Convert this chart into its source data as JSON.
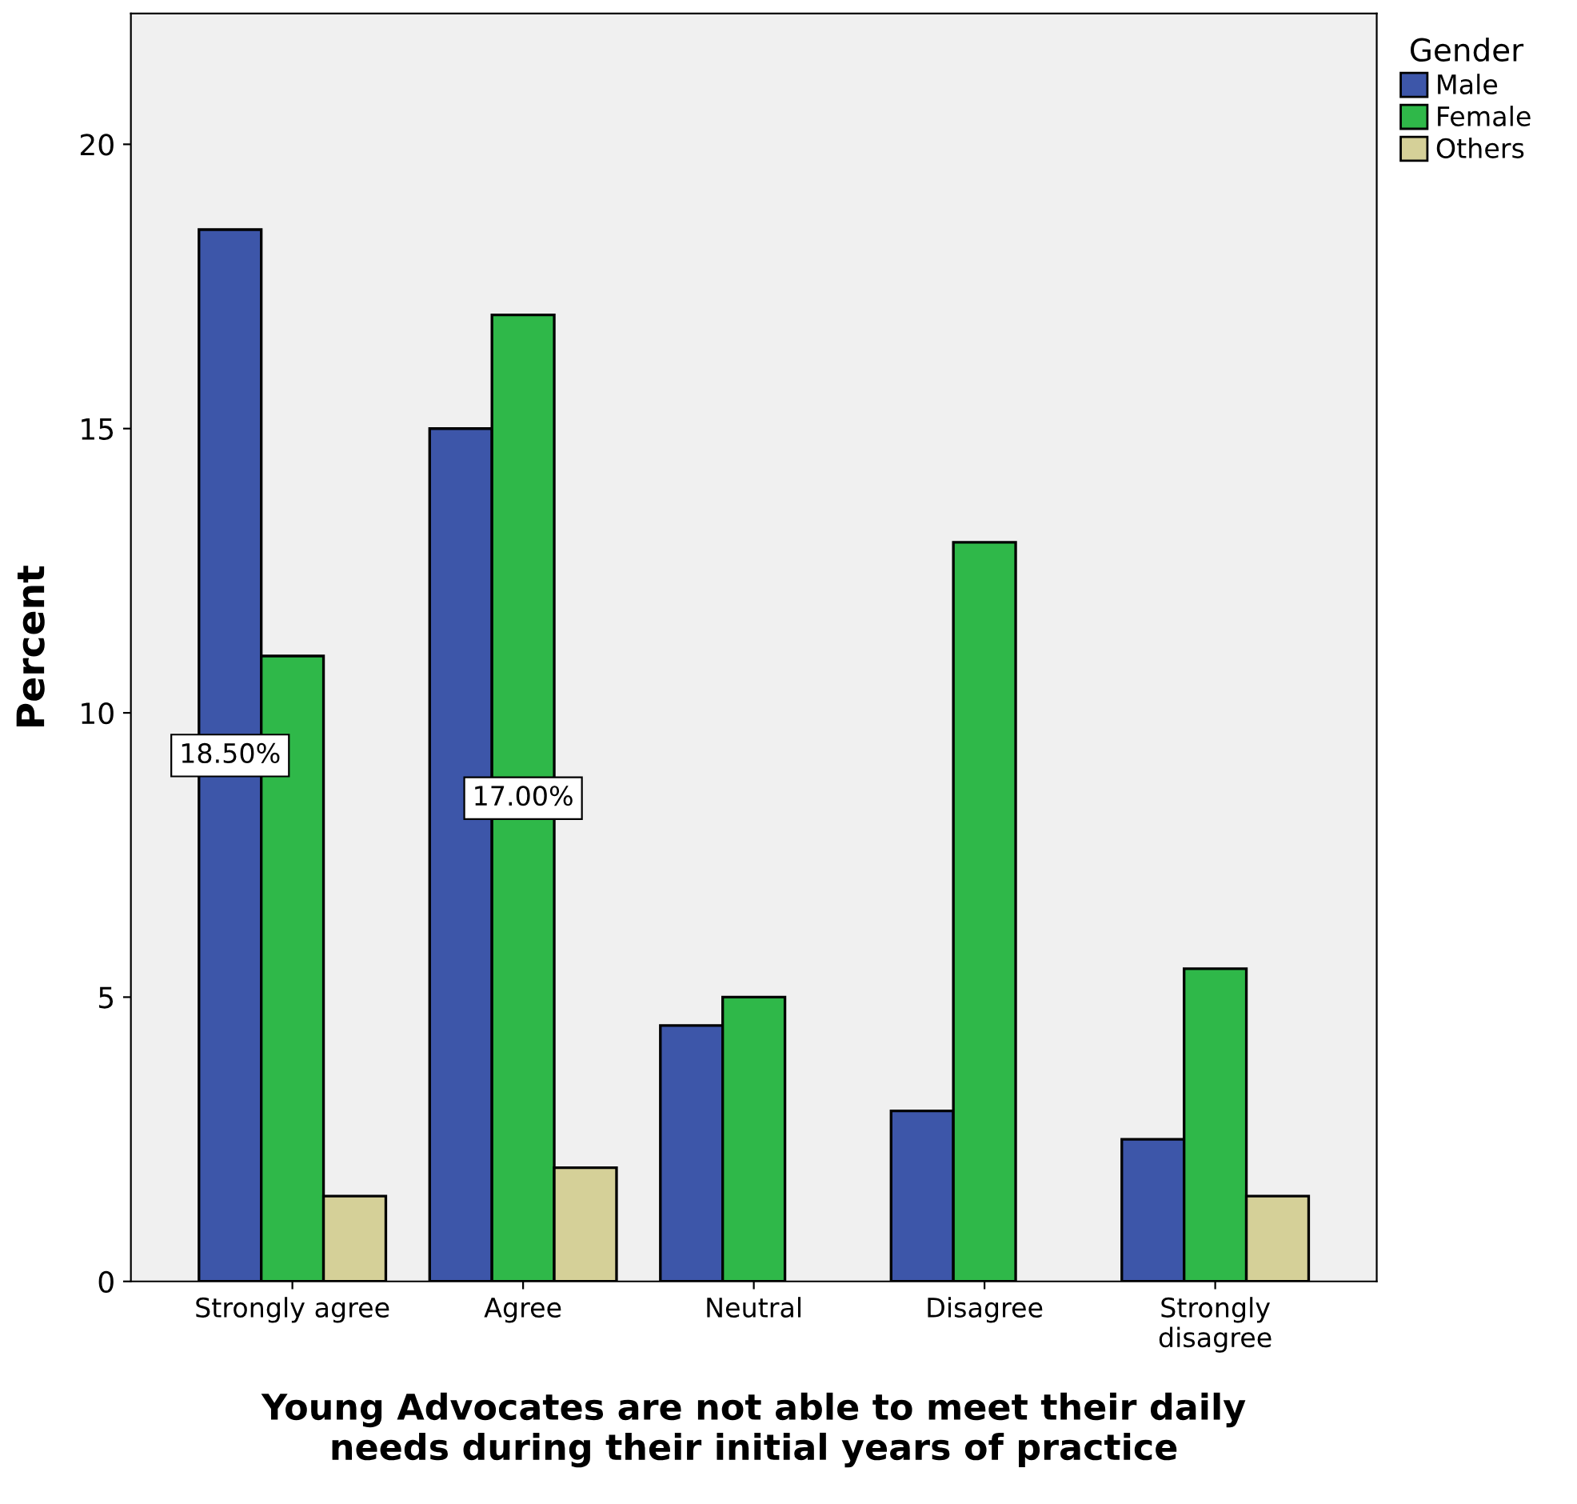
{
  "chart_data": {
    "type": "bar",
    "xlabel": "Young Advocates are not able to meet their daily\nneeds during their initial years of practice",
    "ylabel": "Percent",
    "legend_title": "Gender",
    "legend": "right",
    "categories": [
      "Strongly agree",
      "Agree",
      "Neutral",
      "Disagree",
      "Strongly\ndisagree"
    ],
    "series": [
      {
        "name": "Male",
        "color": "#3d56a9",
        "values": [
          18.5,
          15.0,
          4.5,
          3.0,
          2.5
        ],
        "value_labels": [
          "18.50%",
          null,
          null,
          null,
          null
        ]
      },
      {
        "name": "Female",
        "color": "#2fb849",
        "values": [
          11.0,
          17.0,
          5.0,
          13.0,
          5.5
        ],
        "value_labels": [
          null,
          "17.00%",
          null,
          null,
          null
        ]
      },
      {
        "name": "Others",
        "color": "#d5d098",
        "values": [
          1.5,
          2.0,
          null,
          null,
          1.5
        ]
      }
    ],
    "ylim": [
      0,
      22.3
    ],
    "yticks": [
      0,
      5,
      10,
      15,
      20
    ],
    "grid": false
  }
}
